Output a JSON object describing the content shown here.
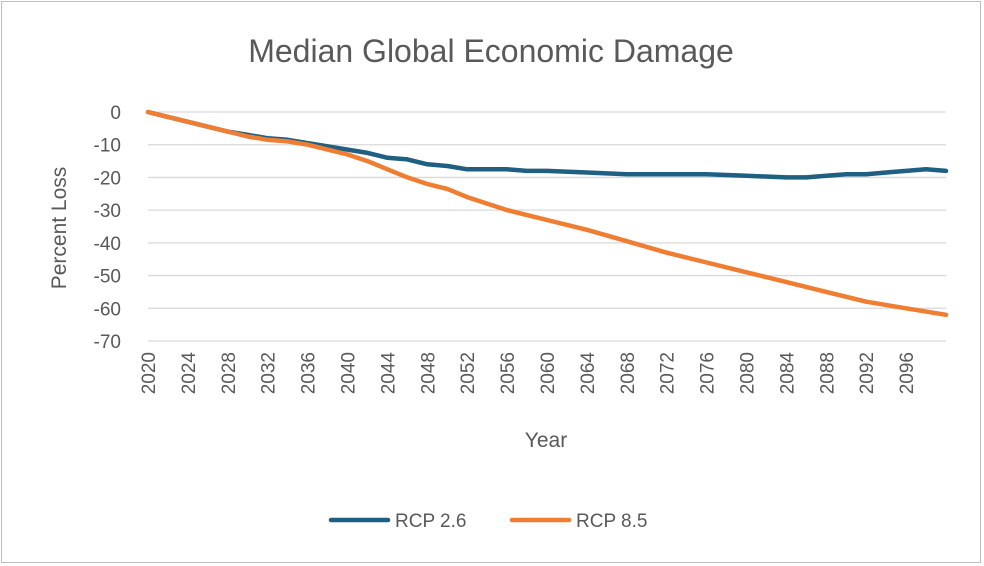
{
  "chart_data": {
    "type": "line",
    "title": "Median Global Economic Damage",
    "xlabel": "Year",
    "ylabel": "Percent Loss",
    "xlim": [
      2020,
      2100
    ],
    "ylim": [
      -70,
      0
    ],
    "y_ticks": [
      0,
      -10,
      -20,
      -30,
      -40,
      -50,
      -60,
      -70
    ],
    "y_tick_labels": [
      "0",
      "-10",
      "-20",
      "-30",
      "-40",
      "-50",
      "-60",
      "-70"
    ],
    "x_tick_labels": [
      "2020",
      "2024",
      "2028",
      "2032",
      "2036",
      "2040",
      "2044",
      "2048",
      "2052",
      "2056",
      "2060",
      "2064",
      "2068",
      "2072",
      "2076",
      "2080",
      "2084",
      "2088",
      "2092",
      "2096"
    ],
    "grid": true,
    "legend_position": "bottom",
    "series": [
      {
        "name": "RCP 2.6",
        "color": "#1f5f82",
        "points": [
          [
            2020,
            0
          ],
          [
            2022,
            -1.5
          ],
          [
            2024,
            -3
          ],
          [
            2026,
            -4.5
          ],
          [
            2028,
            -6
          ],
          [
            2030,
            -7
          ],
          [
            2032,
            -8
          ],
          [
            2034,
            -8.5
          ],
          [
            2036,
            -9.5
          ],
          [
            2038,
            -10.5
          ],
          [
            2040,
            -11.5
          ],
          [
            2042,
            -12.5
          ],
          [
            2044,
            -14
          ],
          [
            2046,
            -14.5
          ],
          [
            2048,
            -16
          ],
          [
            2050,
            -16.5
          ],
          [
            2052,
            -17.5
          ],
          [
            2054,
            -17.5
          ],
          [
            2056,
            -17.5
          ],
          [
            2058,
            -18
          ],
          [
            2060,
            -18
          ],
          [
            2064,
            -18.5
          ],
          [
            2068,
            -19
          ],
          [
            2072,
            -19
          ],
          [
            2076,
            -19
          ],
          [
            2080,
            -19.5
          ],
          [
            2084,
            -20
          ],
          [
            2086,
            -20
          ],
          [
            2088,
            -19.5
          ],
          [
            2090,
            -19
          ],
          [
            2092,
            -19
          ],
          [
            2094,
            -18.5
          ],
          [
            2096,
            -18
          ],
          [
            2098,
            -17.5
          ],
          [
            2100,
            -18
          ]
        ]
      },
      {
        "name": "RCP 8.5",
        "color": "#ef7d32",
        "points": [
          [
            2020,
            0
          ],
          [
            2022,
            -1.5
          ],
          [
            2024,
            -3
          ],
          [
            2026,
            -4.5
          ],
          [
            2028,
            -6
          ],
          [
            2030,
            -7.5
          ],
          [
            2032,
            -8.5
          ],
          [
            2034,
            -9
          ],
          [
            2036,
            -10
          ],
          [
            2038,
            -11.5
          ],
          [
            2040,
            -13
          ],
          [
            2042,
            -15
          ],
          [
            2044,
            -17.5
          ],
          [
            2046,
            -20
          ],
          [
            2048,
            -22
          ],
          [
            2050,
            -23.5
          ],
          [
            2052,
            -26
          ],
          [
            2054,
            -28
          ],
          [
            2056,
            -30
          ],
          [
            2058,
            -31.5
          ],
          [
            2060,
            -33
          ],
          [
            2064,
            -36
          ],
          [
            2068,
            -39.5
          ],
          [
            2072,
            -43
          ],
          [
            2076,
            -46
          ],
          [
            2080,
            -49
          ],
          [
            2084,
            -52
          ],
          [
            2088,
            -55
          ],
          [
            2092,
            -58
          ],
          [
            2096,
            -60
          ],
          [
            2100,
            -62
          ]
        ]
      }
    ]
  }
}
